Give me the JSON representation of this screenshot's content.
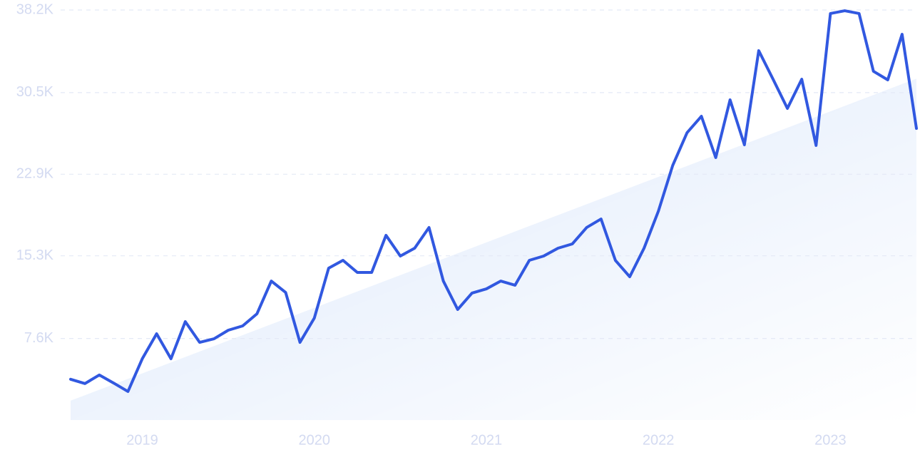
{
  "chart_data": {
    "type": "line",
    "categories": [
      null,
      null,
      null,
      null,
      null,
      "2019",
      null,
      null,
      null,
      null,
      null,
      null,
      null,
      null,
      null,
      null,
      null,
      "2020",
      null,
      null,
      null,
      null,
      null,
      null,
      null,
      null,
      null,
      null,
      null,
      "2021",
      null,
      null,
      null,
      null,
      null,
      null,
      null,
      null,
      null,
      null,
      null,
      "2022",
      null,
      null,
      null,
      null,
      null,
      null,
      null,
      null,
      null,
      null,
      null,
      "2023",
      null,
      null,
      null,
      null,
      null,
      null
    ],
    "series": [
      {
        "color": "#3158e0",
        "values": [
          3800,
          3400,
          4200,
          3450,
          2660,
          5710,
          8040,
          5710,
          9170,
          7240,
          7570,
          8370,
          8770,
          9900,
          12950,
          11890,
          7240,
          9500,
          14150,
          14880,
          13750,
          13750,
          17210,
          15280,
          16010,
          17940,
          12950,
          10300,
          11830,
          12220,
          12950,
          12560,
          14880,
          15280,
          16010,
          16410,
          17940,
          18730,
          14880,
          13350,
          16010,
          19460,
          23720,
          26770,
          28300,
          24450,
          29830,
          25640,
          34410,
          31750,
          29030,
          31750,
          25580,
          37870,
          38130,
          37870,
          32490,
          31690,
          35940,
          27170
        ]
      }
    ],
    "trend": {
      "color": "#dce8fb",
      "values": [
        1800,
        31800
      ]
    },
    "ylim": [
      0,
      38200
    ],
    "yticks": [
      {
        "value": 7600,
        "label": "7.6K"
      },
      {
        "value": 15300,
        "label": "15.3K"
      },
      {
        "value": 22900,
        "label": "22.9K"
      },
      {
        "value": 30500,
        "label": "30.5K"
      },
      {
        "value": 38200,
        "label": "38.2K"
      }
    ],
    "grid": true
  }
}
